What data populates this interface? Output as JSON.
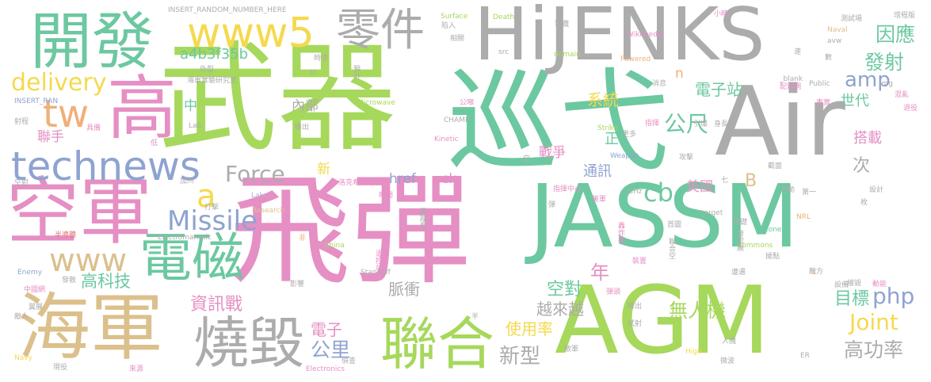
{
  "colors": {
    "green": "#a6d85c",
    "pink": "#e58fc4",
    "teal": "#6cc8a0",
    "gray": "#acacac",
    "tan": "#dcc08c",
    "blue": "#8fa3d0",
    "yellow": "#f5d94e",
    "lavender": "#b9a8cf",
    "orange": "#efb07a",
    "red": "#e07478",
    "background": "#ffffff"
  },
  "words": [
    {
      "text": "飛彈",
      "color": "pink"
    },
    {
      "text": "武器",
      "color": "green"
    },
    {
      "text": "巡弋",
      "color": "teal"
    },
    {
      "text": "Air",
      "color": "gray"
    },
    {
      "text": "AGM",
      "color": "green"
    },
    {
      "text": "JASSM",
      "color": "teal"
    },
    {
      "text": "HiJENKS",
      "color": "gray"
    },
    {
      "text": "空軍",
      "color": "pink"
    },
    {
      "text": "海軍",
      "color": "tan"
    },
    {
      "text": "高",
      "color": "pink"
    },
    {
      "text": "開發",
      "color": "teal"
    },
    {
      "text": "聯合",
      "color": "green"
    },
    {
      "text": "燒毀",
      "color": "gray"
    },
    {
      "text": "電磁",
      "color": "teal"
    },
    {
      "text": "technews",
      "color": "blue"
    },
    {
      "text": "零件",
      "color": "gray"
    },
    {
      "text": "www5",
      "color": "yellow"
    },
    {
      "text": "www",
      "color": "tan"
    },
    {
      "text": "tw",
      "color": "orange"
    },
    {
      "text": "delivery",
      "color": "yellow"
    },
    {
      "text": "Missile",
      "color": "blue"
    },
    {
      "text": "Force",
      "color": "gray"
    },
    {
      "text": "a",
      "color": "yellow"
    },
    {
      "text": "cb",
      "color": "teal"
    },
    {
      "text": "Joint",
      "color": "yellow"
    },
    {
      "text": "php",
      "color": "blue"
    },
    {
      "text": "amp",
      "color": "blue"
    },
    {
      "text": "發射",
      "color": "teal"
    },
    {
      "text": "因應",
      "color": "teal"
    },
    {
      "text": "公尺",
      "color": "teal"
    },
    {
      "text": "高功率",
      "color": "gray"
    },
    {
      "text": "新型",
      "color": "gray"
    },
    {
      "text": "公里",
      "color": "blue"
    },
    {
      "text": "年",
      "color": "pink"
    },
    {
      "text": "無人機",
      "color": "green"
    },
    {
      "text": "目標",
      "color": "teal"
    },
    {
      "text": "空對",
      "color": "teal"
    },
    {
      "text": "資訊戰",
      "color": "pink"
    },
    {
      "text": "高科技",
      "color": "teal"
    },
    {
      "text": "電子",
      "color": "pink"
    },
    {
      "text": "使用率",
      "color": "yellow"
    },
    {
      "text": "脈衝",
      "color": "gray"
    },
    {
      "text": "越來越",
      "color": "gray"
    },
    {
      "text": "a4b3f35b",
      "color": "teal"
    },
    {
      "text": "內部",
      "color": "gray"
    },
    {
      "text": "系統",
      "color": "yellow"
    },
    {
      "text": "電子站",
      "color": "teal"
    },
    {
      "text": "世代",
      "color": "teal"
    },
    {
      "text": "搭載",
      "color": "pink"
    },
    {
      "text": "次",
      "color": "gray"
    },
    {
      "text": "美國",
      "color": "pink"
    },
    {
      "text": "B",
      "color": "tan"
    },
    {
      "text": "通訊",
      "color": "blue"
    },
    {
      "text": "正",
      "color": "teal"
    },
    {
      "text": "戰爭",
      "color": "pink"
    },
    {
      "text": "href",
      "color": "blue"
    },
    {
      "text": "ck",
      "color": "pink"
    },
    {
      "text": "中",
      "color": "teal"
    },
    {
      "text": "聯手",
      "color": "pink"
    },
    {
      "text": "新",
      "color": "yellow"
    },
    {
      "text": "n",
      "color": "orange"
    },
    {
      "text": "Lake",
      "color": "lavender"
    },
    {
      "text": "Research",
      "color": "tan"
    },
    {
      "text": "Electromanetic",
      "color": "gray"
    },
    {
      "text": "China",
      "color": "green"
    },
    {
      "text": "Standoff",
      "color": "gray"
    },
    {
      "text": "Electronics",
      "color": "pink"
    },
    {
      "text": "Navy",
      "color": "yellow"
    },
    {
      "text": "Enemy",
      "color": "blue"
    },
    {
      "text": "CHAMP",
      "color": "gray"
    },
    {
      "text": "Kinetic",
      "color": "pink"
    },
    {
      "text": "Microwave",
      "color": "green"
    },
    {
      "text": "Surface",
      "color": "green"
    },
    {
      "text": "Death",
      "color": "green"
    },
    {
      "text": "Wikimedia",
      "color": "pink"
    },
    {
      "text": "Powered",
      "color": "orange"
    },
    {
      "text": "domain",
      "color": "green"
    },
    {
      "text": "src",
      "color": "gray"
    },
    {
      "text": "Strike",
      "color": "green"
    },
    {
      "text": "Weapon",
      "color": "blue"
    },
    {
      "text": "Lab",
      "color": "gray"
    },
    {
      "text": "INSERT_RANDOM_NUMBER_HERE",
      "color": "gray"
    },
    {
      "text": "INSERT_RAN",
      "color": "blue"
    },
    {
      "text": "target",
      "color": "gray"
    },
    {
      "text": "Commons",
      "color": "green"
    },
    {
      "text": "zoneid",
      "color": "teal"
    },
    {
      "text": "NRL",
      "color": "orange"
    },
    {
      "text": "_blank",
      "color": "gray"
    },
    {
      "text": "Public",
      "color": "gray"
    },
    {
      "text": "Naval",
      "color": "tan"
    },
    {
      "text": "avw",
      "color": "gray"
    },
    {
      "text": "GHz",
      "color": "gray"
    },
    {
      "text": "High",
      "color": "yellow"
    },
    {
      "text": "ER",
      "color": "gray"
    },
    {
      "text": "img",
      "color": "gray"
    },
    {
      "text": "洛克希德馬丁",
      "color": "pink"
    },
    {
      "text": "海軍實驗研究室",
      "color": "gray"
    },
    {
      "text": "指揮中心",
      "color": "pink"
    },
    {
      "text": "遙控站",
      "color": "pink"
    },
    {
      "text": "匿蹤型",
      "color": "gray"
    },
    {
      "text": "轟炸機",
      "color": "pink"
    },
    {
      "text": "聯合空",
      "color": "gray"
    },
    {
      "text": "發電廠",
      "color": "gray"
    },
    {
      "text": "預計",
      "color": "gray"
    },
    {
      "text": "時間",
      "color": "pink"
    },
    {
      "text": "美軍",
      "color": "pink"
    },
    {
      "text": "首圖",
      "color": "gray"
    },
    {
      "text": "基礎",
      "color": "gray"
    },
    {
      "text": "攻擊",
      "color": "gray"
    },
    {
      "text": "發動",
      "color": "gray"
    },
    {
      "text": "第一",
      "color": "gray"
    },
    {
      "text": "設計",
      "color": "gray"
    },
    {
      "text": "截面",
      "color": "gray"
    },
    {
      "text": "指揮",
      "color": "pink"
    },
    {
      "text": "引爆",
      "color": "gray"
    },
    {
      "text": "身長",
      "color": "gray"
    },
    {
      "text": "更多",
      "color": "gray"
    },
    {
      "text": "小時",
      "color": "pink"
    },
    {
      "text": "測試場",
      "color": "gray"
    },
    {
      "text": "增程版",
      "color": "gray"
    },
    {
      "text": "電纜",
      "color": "gray"
    },
    {
      "text": "陷入",
      "color": "gray"
    },
    {
      "text": "相關",
      "color": "gray"
    },
    {
      "text": "公噸",
      "color": "pink"
    },
    {
      "text": "時速",
      "color": "gray"
    },
    {
      "text": "外型",
      "color": "gray"
    },
    {
      "text": "推出",
      "color": "gray"
    },
    {
      "text": "射程",
      "color": "gray"
    },
    {
      "text": "具備",
      "color": "pink"
    },
    {
      "text": "加州",
      "color": "gray"
    },
    {
      "text": "空射",
      "color": "gray"
    },
    {
      "text": "打擊",
      "color": "gray"
    },
    {
      "text": "半導體",
      "color": "red"
    },
    {
      "text": "中國網",
      "color": "pink"
    },
    {
      "text": "發散",
      "color": "gray"
    },
    {
      "text": "翼展",
      "color": "gray"
    },
    {
      "text": "敵人",
      "color": "gray"
    },
    {
      "text": "現役",
      "color": "gray"
    },
    {
      "text": "來源",
      "color": "pink"
    },
    {
      "text": "影響",
      "color": "gray"
    },
    {
      "text": "偵查",
      "color": "gray"
    },
    {
      "text": "散軍",
      "color": "gray"
    },
    {
      "text": "試射",
      "color": "gray"
    },
    {
      "text": "釋出",
      "color": "gray"
    },
    {
      "text": "彈頭",
      "color": "pink"
    },
    {
      "text": "裝置",
      "color": "pink"
    },
    {
      "text": "遭遇",
      "color": "gray"
    },
    {
      "text": "人機",
      "color": "gray"
    },
    {
      "text": "微波",
      "color": "gray"
    },
    {
      "text": "據點",
      "color": "gray"
    },
    {
      "text": "敵方",
      "color": "gray"
    },
    {
      "text": "動能",
      "color": "pink"
    },
    {
      "text": "摧毀",
      "color": "gray"
    },
    {
      "text": "設備",
      "color": "gray"
    },
    {
      "text": "消息",
      "color": "gray"
    },
    {
      "text": "配電網",
      "color": "pink"
    },
    {
      "text": "事實",
      "color": "pink"
    },
    {
      "text": "混亂",
      "color": "pink"
    },
    {
      "text": "退役",
      "color": "pink"
    },
    {
      "text": "半",
      "color": "gray"
    },
    {
      "text": "數",
      "color": "gray"
    },
    {
      "text": "速",
      "color": "gray"
    },
    {
      "text": "低",
      "color": "pink"
    },
    {
      "text": "非",
      "color": "orange"
    },
    {
      "text": "空",
      "color": "gray"
    },
    {
      "text": "彈",
      "color": "gray"
    },
    {
      "text": "七",
      "color": "gray"
    },
    {
      "text": "枚",
      "color": "gray"
    },
    {
      "text": "s",
      "color": "orange"
    },
    {
      "text": "U",
      "color": "gray"
    }
  ]
}
